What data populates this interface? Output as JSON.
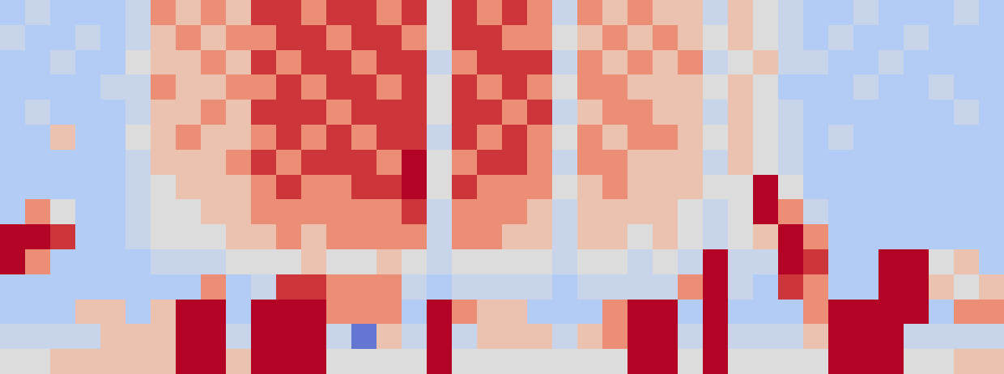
{
  "chart_data": {
    "type": "heatmap",
    "tick_labels": false,
    "zlim": [
      0,
      10
    ],
    "cells": [
      [
        3,
        4,
        3,
        3,
        3,
        4,
        7,
        6,
        7,
        6,
        8,
        8,
        7,
        8,
        8,
        7,
        8,
        5,
        8,
        7,
        8,
        7,
        4,
        7,
        6,
        7,
        6,
        6,
        4,
        6,
        5,
        4,
        3,
        3,
        4,
        3,
        3,
        3,
        4,
        3
      ],
      [
        4,
        3,
        3,
        4,
        3,
        4,
        6,
        7,
        6,
        7,
        7,
        8,
        8,
        7,
        8,
        8,
        7,
        5,
        8,
        8,
        7,
        7,
        5,
        6,
        7,
        6,
        7,
        6,
        5,
        6,
        5,
        4,
        3,
        4,
        3,
        3,
        4,
        3,
        3,
        3
      ],
      [
        3,
        3,
        4,
        3,
        3,
        5,
        6,
        6,
        7,
        6,
        8,
        7,
        8,
        8,
        7,
        8,
        8,
        4,
        7,
        8,
        8,
        8,
        4,
        7,
        6,
        7,
        6,
        7,
        4,
        5,
        6,
        4,
        4,
        3,
        3,
        4,
        3,
        3,
        3,
        3
      ],
      [
        3,
        3,
        3,
        3,
        4,
        4,
        7,
        6,
        6,
        7,
        7,
        8,
        7,
        8,
        8,
        7,
        8,
        5,
        8,
        7,
        8,
        7,
        5,
        7,
        7,
        6,
        6,
        6,
        5,
        6,
        5,
        3,
        3,
        3,
        4,
        3,
        3,
        4,
        3,
        3
      ],
      [
        3,
        4,
        3,
        3,
        3,
        4,
        6,
        6,
        7,
        6,
        8,
        8,
        8,
        7,
        8,
        8,
        8,
        5,
        8,
        8,
        7,
        8,
        4,
        6,
        7,
        7,
        6,
        6,
        4,
        6,
        5,
        4,
        3,
        3,
        3,
        3,
        3,
        3,
        4,
        3
      ],
      [
        3,
        3,
        6,
        3,
        3,
        5,
        6,
        7,
        6,
        6,
        7,
        8,
        7,
        8,
        7,
        8,
        8,
        4,
        8,
        7,
        8,
        7,
        5,
        7,
        6,
        7,
        7,
        6,
        5,
        6,
        5,
        4,
        3,
        4,
        3,
        3,
        3,
        3,
        3,
        3
      ],
      [
        3,
        3,
        3,
        3,
        3,
        4,
        6,
        6,
        6,
        7,
        8,
        7,
        8,
        8,
        8,
        7,
        9,
        5,
        7,
        8,
        8,
        7,
        4,
        7,
        7,
        6,
        6,
        6,
        4,
        6,
        5,
        4,
        3,
        3,
        3,
        3,
        3,
        3,
        3,
        3
      ],
      [
        3,
        3,
        3,
        3,
        3,
        4,
        5,
        6,
        6,
        6,
        7,
        8,
        7,
        7,
        8,
        8,
        9,
        5,
        8,
        7,
        7,
        7,
        5,
        6,
        7,
        6,
        6,
        6,
        5,
        5,
        9,
        5,
        3,
        3,
        3,
        3,
        3,
        3,
        3,
        3
      ],
      [
        3,
        7,
        5,
        3,
        3,
        4,
        5,
        5,
        6,
        6,
        7,
        7,
        7,
        7,
        7,
        7,
        8,
        4,
        7,
        7,
        7,
        6,
        4,
        6,
        6,
        6,
        6,
        5,
        4,
        5,
        9,
        7,
        4,
        3,
        3,
        3,
        3,
        3,
        3,
        3
      ],
      [
        9,
        9,
        8,
        3,
        3,
        4,
        5,
        5,
        5,
        6,
        6,
        7,
        6,
        7,
        7,
        7,
        7,
        4,
        7,
        7,
        6,
        6,
        4,
        6,
        6,
        5,
        6,
        5,
        4,
        5,
        6,
        9,
        7,
        3,
        3,
        3,
        3,
        3,
        3,
        3
      ],
      [
        9,
        7,
        3,
        3,
        3,
        3,
        4,
        4,
        4,
        5,
        5,
        5,
        6,
        5,
        5,
        6,
        5,
        4,
        5,
        5,
        5,
        5,
        4,
        5,
        5,
        4,
        5,
        4,
        9,
        4,
        4,
        9,
        8,
        3,
        3,
        9,
        9,
        5,
        6,
        3
      ],
      [
        3,
        3,
        3,
        3,
        3,
        3,
        3,
        3,
        7,
        3,
        4,
        8,
        8,
        7,
        7,
        7,
        4,
        3,
        4,
        4,
        4,
        4,
        3,
        4,
        4,
        4,
        4,
        7,
        9,
        4,
        3,
        8,
        7,
        3,
        3,
        9,
        9,
        6,
        5,
        6
      ],
      [
        3,
        3,
        3,
        6,
        6,
        3,
        6,
        9,
        9,
        3,
        9,
        9,
        9,
        7,
        7,
        7,
        3,
        9,
        7,
        6,
        6,
        3,
        3,
        3,
        7,
        9,
        9,
        3,
        9,
        3,
        3,
        3,
        7,
        9,
        9,
        9,
        9,
        3,
        7,
        7
      ],
      [
        4,
        4,
        4,
        4,
        6,
        6,
        6,
        9,
        9,
        4,
        9,
        9,
        9,
        4,
        1,
        6,
        4,
        9,
        4,
        6,
        6,
        6,
        4,
        6,
        7,
        9,
        9,
        4,
        9,
        4,
        4,
        4,
        6,
        9,
        9,
        9,
        4,
        4,
        4,
        4
      ],
      [
        5,
        5,
        6,
        6,
        6,
        6,
        6,
        9,
        9,
        6,
        9,
        9,
        9,
        5,
        5,
        5,
        5,
        9,
        5,
        5,
        5,
        5,
        5,
        5,
        5,
        9,
        9,
        5,
        9,
        5,
        5,
        5,
        5,
        9,
        9,
        9,
        5,
        5,
        6,
        6
      ]
    ]
  }
}
